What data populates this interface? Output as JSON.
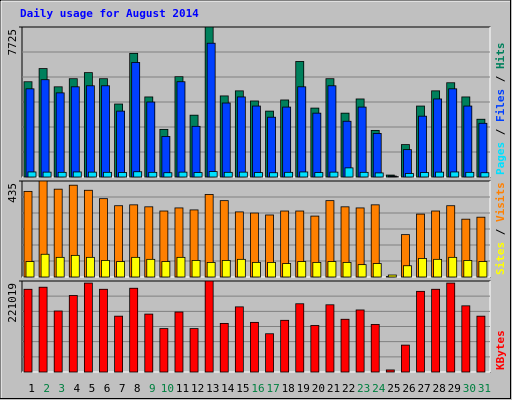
{
  "chart_data": {
    "type": "bar",
    "title": "Daily usage for August 2014",
    "categories": [
      "1",
      "2",
      "3",
      "4",
      "5",
      "6",
      "7",
      "8",
      "9",
      "10",
      "11",
      "12",
      "13",
      "14",
      "15",
      "16",
      "17",
      "18",
      "19",
      "20",
      "21",
      "22",
      "23",
      "24",
      "25",
      "26",
      "27",
      "28",
      "29",
      "30",
      "31"
    ],
    "category_colors": [
      "#000000",
      "#008040",
      "#008040",
      "#000000",
      "#000000",
      "#000000",
      "#000000",
      "#000000",
      "#008040",
      "#008040",
      "#000000",
      "#000000",
      "#000000",
      "#000000",
      "#000000",
      "#008040",
      "#008040",
      "#000000",
      "#000000",
      "#000000",
      "#000000",
      "#000000",
      "#008040",
      "#008040",
      "#000000",
      "#000000",
      "#000000",
      "#000000",
      "#000000",
      "#008040",
      "#008040"
    ],
    "legend_separator": " / ",
    "panels": [
      {
        "ylim": [
          0,
          7725
        ],
        "yticks": [
          7725
        ],
        "series": [
          {
            "name": "Pages",
            "color": "#00e0ff",
            "values": [
              260,
              250,
              240,
              260,
              250,
              240,
              230,
              270,
              240,
              220,
              250,
              230,
              280,
              240,
              250,
              230,
              220,
              240,
              260,
              230,
              250,
              470,
              240,
              210,
              20,
              180,
              230,
              250,
              260,
              240,
              220
            ]
          },
          {
            "name": "Files",
            "color": "#0040ff",
            "values": [
              4541,
              5011,
              4332,
              4645,
              4698,
              4698,
              3393,
              5898,
              3862,
              2088,
              4906,
              2610,
              6890,
              3810,
              4123,
              3654,
              3079,
              3601,
              4645,
              3288,
              4698,
              2871,
              3601,
              2244,
              50,
              1409,
              3132,
              4019,
              4541,
              3654,
              2766
            ]
          },
          {
            "name": "Hits",
            "color": "#00805c",
            "values": [
              4906,
              5585,
              4645,
              5063,
              5376,
              5063,
              3758,
              6368,
              4123,
              2453,
              5167,
              3184,
              7725,
              4176,
              4437,
              3915,
              3393,
              3967,
              5950,
              3549,
              5063,
              3288,
              4019,
              2401,
              100,
              1670,
              3654,
              4437,
              4854,
              4123,
              2975
            ]
          }
        ]
      },
      {
        "ylim": [
          0,
          435
        ],
        "yticks": [
          435
        ],
        "series": [
          {
            "name": "Sites",
            "color": "#ffff00",
            "values": [
              70,
              103,
              89,
              98,
              89,
              75,
              70,
              89,
              80,
              70,
              89,
              75,
              66,
              75,
              80,
              66,
              66,
              61,
              70,
              66,
              70,
              66,
              56,
              61,
              9,
              51,
              84,
              80,
              89,
              75,
              70
            ]
          },
          {
            "name": "Visits",
            "color": "#ff8000",
            "values": [
              388,
              435,
              398,
              416,
              393,
              355,
              323,
              327,
              318,
              299,
              313,
              304,
              374,
              346,
              295,
              290,
              281,
              299,
              299,
              276,
              346,
              318,
              313,
              327,
              2,
              192,
              285,
              299,
              323,
              262,
              271
            ]
          }
        ]
      },
      {
        "ylim": [
          0,
          221019
        ],
        "yticks": [
          221019
        ],
        "series": [
          {
            "name": "KBytes",
            "color": "#ff0000",
            "values": [
              200926,
              205949,
              148184,
              185855,
              216000,
              200926,
              135626,
              203437,
              140649,
              105487,
              145672,
              105487,
              221019,
              118045,
              158231,
              120556,
              92929,
              125579,
              165766,
              113022,
              163254,
              128091,
              150695,
              115533,
              5023,
              65301,
              195903,
              200926,
              216000,
              160742,
              135626
            ]
          }
        ]
      }
    ]
  }
}
